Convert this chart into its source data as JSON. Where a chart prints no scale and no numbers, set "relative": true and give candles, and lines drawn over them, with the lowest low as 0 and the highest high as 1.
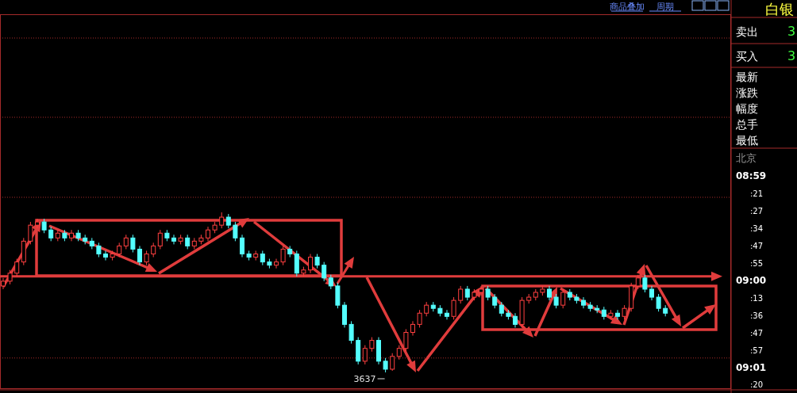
{
  "chart_data": [
    {
      "type": "candlestick",
      "relative": true,
      "ref_lines": [
        {
          "axis": "y",
          "value": 0.6,
          "color": "#e03c3c"
        },
        {
          "axis": "y",
          "value": 0.09,
          "color": "#a52a2a",
          "line_style": "dotted"
        }
      ],
      "categories": [
        null,
        null,
        null,
        null,
        null,
        null,
        null,
        null,
        null,
        null,
        null,
        null,
        null,
        null,
        null,
        null,
        null,
        null,
        null,
        null,
        null,
        null,
        null,
        null,
        null,
        null,
        null,
        null,
        null,
        null,
        null,
        null,
        null,
        null,
        null,
        null,
        null,
        null,
        null,
        null,
        null,
        null,
        null,
        null,
        null,
        null,
        null,
        null,
        null,
        null,
        null,
        null,
        null,
        null,
        null,
        null,
        null,
        null,
        null,
        null,
        null,
        null,
        null,
        null,
        null,
        null,
        null,
        null,
        null,
        null,
        null,
        null,
        null,
        null,
        null,
        null,
        null,
        null,
        null,
        null,
        null,
        null,
        null,
        null,
        null,
        null,
        null,
        null,
        null,
        null,
        null,
        null,
        null,
        null,
        null,
        null,
        null,
        null
      ],
      "ohlc": [
        [
          0.54,
          0.59,
          0.52,
          0.57
        ],
        [
          0.57,
          0.64,
          0.55,
          0.62
        ],
        [
          0.62,
          0.71,
          0.6,
          0.69
        ],
        [
          0.69,
          0.84,
          0.67,
          0.82
        ],
        [
          0.82,
          0.94,
          0.8,
          0.92
        ],
        [
          0.92,
          0.96,
          0.9,
          0.94
        ],
        [
          0.94,
          0.96,
          0.87,
          0.89
        ],
        [
          0.89,
          0.91,
          0.82,
          0.84
        ],
        [
          0.84,
          0.89,
          0.82,
          0.87
        ],
        [
          0.87,
          0.89,
          0.82,
          0.84
        ],
        [
          0.84,
          0.89,
          0.82,
          0.87
        ],
        [
          0.87,
          0.89,
          0.82,
          0.84
        ],
        [
          0.84,
          0.86,
          0.8,
          0.82
        ],
        [
          0.82,
          0.84,
          0.77,
          0.79
        ],
        [
          0.79,
          0.81,
          0.72,
          0.74
        ],
        [
          0.74,
          0.76,
          0.7,
          0.72
        ],
        [
          0.72,
          0.76,
          0.7,
          0.74
        ],
        [
          0.74,
          0.81,
          0.72,
          0.79
        ],
        [
          0.79,
          0.86,
          0.77,
          0.84
        ],
        [
          0.84,
          0.86,
          0.75,
          0.77
        ],
        [
          0.77,
          0.79,
          0.67,
          0.69
        ],
        [
          0.69,
          0.76,
          0.67,
          0.74
        ],
        [
          0.74,
          0.81,
          0.72,
          0.79
        ],
        [
          0.79,
          0.89,
          0.77,
          0.87
        ],
        [
          0.87,
          0.89,
          0.82,
          0.84
        ],
        [
          0.84,
          0.86,
          0.8,
          0.82
        ],
        [
          0.82,
          0.86,
          0.8,
          0.84
        ],
        [
          0.84,
          0.86,
          0.77,
          0.79
        ],
        [
          0.79,
          0.84,
          0.77,
          0.82
        ],
        [
          0.82,
          0.86,
          0.8,
          0.84
        ],
        [
          0.84,
          0.91,
          0.82,
          0.89
        ],
        [
          0.89,
          0.94,
          0.87,
          0.92
        ],
        [
          0.92,
          1.0,
          0.9,
          0.97
        ],
        [
          0.97,
          0.99,
          0.9,
          0.92
        ],
        [
          0.92,
          0.94,
          0.82,
          0.84
        ],
        [
          0.84,
          0.86,
          0.72,
          0.74
        ],
        [
          0.74,
          0.76,
          0.7,
          0.72
        ],
        [
          0.72,
          0.76,
          0.7,
          0.74
        ],
        [
          0.74,
          0.76,
          0.67,
          0.69
        ],
        [
          0.69,
          0.71,
          0.65,
          0.67
        ],
        [
          0.67,
          0.71,
          0.65,
          0.69
        ],
        [
          0.69,
          0.79,
          0.67,
          0.77
        ],
        [
          0.77,
          0.79,
          0.72,
          0.74
        ],
        [
          0.74,
          0.76,
          0.6,
          0.62
        ],
        [
          0.62,
          0.66,
          0.6,
          0.64
        ],
        [
          0.64,
          0.74,
          0.62,
          0.72
        ],
        [
          0.72,
          0.74,
          0.65,
          0.67
        ],
        [
          0.67,
          0.69,
          0.57,
          0.59
        ],
        [
          0.59,
          0.61,
          0.52,
          0.54
        ],
        [
          0.54,
          0.56,
          0.4,
          0.42
        ],
        [
          0.42,
          0.44,
          0.28,
          0.3
        ],
        [
          0.3,
          0.32,
          0.18,
          0.2
        ],
        [
          0.2,
          0.22,
          0.05,
          0.07
        ],
        [
          0.07,
          0.17,
          0.05,
          0.15
        ],
        [
          0.15,
          0.22,
          0.13,
          0.2
        ],
        [
          0.2,
          0.22,
          0.05,
          0.07
        ],
        [
          0.07,
          0.09,
          0,
          0.02
        ],
        [
          0.02,
          0.12,
          0.01,
          0.1
        ],
        [
          0.1,
          0.17,
          0.08,
          0.15
        ],
        [
          0.15,
          0.27,
          0.13,
          0.25
        ],
        [
          0.25,
          0.32,
          0.23,
          0.3
        ],
        [
          0.3,
          0.39,
          0.28,
          0.37
        ],
        [
          0.37,
          0.44,
          0.35,
          0.42
        ],
        [
          0.42,
          0.44,
          0.38,
          0.4
        ],
        [
          0.4,
          0.42,
          0.35,
          0.37
        ],
        [
          0.37,
          0.39,
          0.33,
          0.35
        ],
        [
          0.35,
          0.47,
          0.33,
          0.45
        ],
        [
          0.45,
          0.54,
          0.43,
          0.52
        ],
        [
          0.52,
          0.54,
          0.45,
          0.47
        ],
        [
          0.47,
          0.52,
          0.45,
          0.5
        ],
        [
          0.5,
          0.54,
          0.48,
          0.52
        ],
        [
          0.52,
          0.54,
          0.45,
          0.47
        ],
        [
          0.47,
          0.49,
          0.4,
          0.42
        ],
        [
          0.42,
          0.44,
          0.35,
          0.37
        ],
        [
          0.37,
          0.39,
          0.33,
          0.35
        ],
        [
          0.35,
          0.37,
          0.28,
          0.3
        ],
        [
          0.3,
          0.47,
          0.28,
          0.45
        ],
        [
          0.45,
          0.49,
          0.43,
          0.47
        ],
        [
          0.47,
          0.52,
          0.45,
          0.5
        ],
        [
          0.5,
          0.54,
          0.48,
          0.52
        ],
        [
          0.52,
          0.54,
          0.45,
          0.47
        ],
        [
          0.47,
          0.49,
          0.4,
          0.42
        ],
        [
          0.42,
          0.52,
          0.4,
          0.5
        ],
        [
          0.5,
          0.52,
          0.45,
          0.47
        ],
        [
          0.47,
          0.49,
          0.43,
          0.45
        ],
        [
          0.45,
          0.47,
          0.4,
          0.42
        ],
        [
          0.42,
          0.44,
          0.38,
          0.4
        ],
        [
          0.4,
          0.42,
          0.37,
          0.39
        ],
        [
          0.39,
          0.41,
          0.33,
          0.35
        ],
        [
          0.35,
          0.39,
          0.33,
          0.37
        ],
        [
          0.37,
          0.39,
          0.33,
          0.35
        ],
        [
          0.35,
          0.42,
          0.33,
          0.4
        ],
        [
          0.4,
          0.56,
          0.38,
          0.54
        ],
        [
          0.54,
          0.61,
          0.52,
          0.59
        ],
        [
          0.59,
          0.61,
          0.5,
          0.52
        ],
        [
          0.52,
          0.54,
          0.45,
          0.47
        ],
        [
          0.47,
          0.49,
          0.38,
          0.4
        ],
        [
          0.4,
          0.42,
          0.35,
          0.37
        ]
      ],
      "annotations": [
        "3637"
      ]
    },
    {
      "type": "other",
      "annotations": [
        "商品叠加",
        "周期",
        "白银",
        "卖出",
        "3",
        "买入",
        "3",
        "最新",
        "涨跌",
        "幅度",
        "总手",
        "最低",
        "北京",
        "08:59",
        ":21",
        ":27",
        ":34",
        ":47",
        ":55",
        "09:00",
        ":13",
        ":36",
        ":47",
        ":57",
        "09:01",
        ":20"
      ]
    }
  ]
}
